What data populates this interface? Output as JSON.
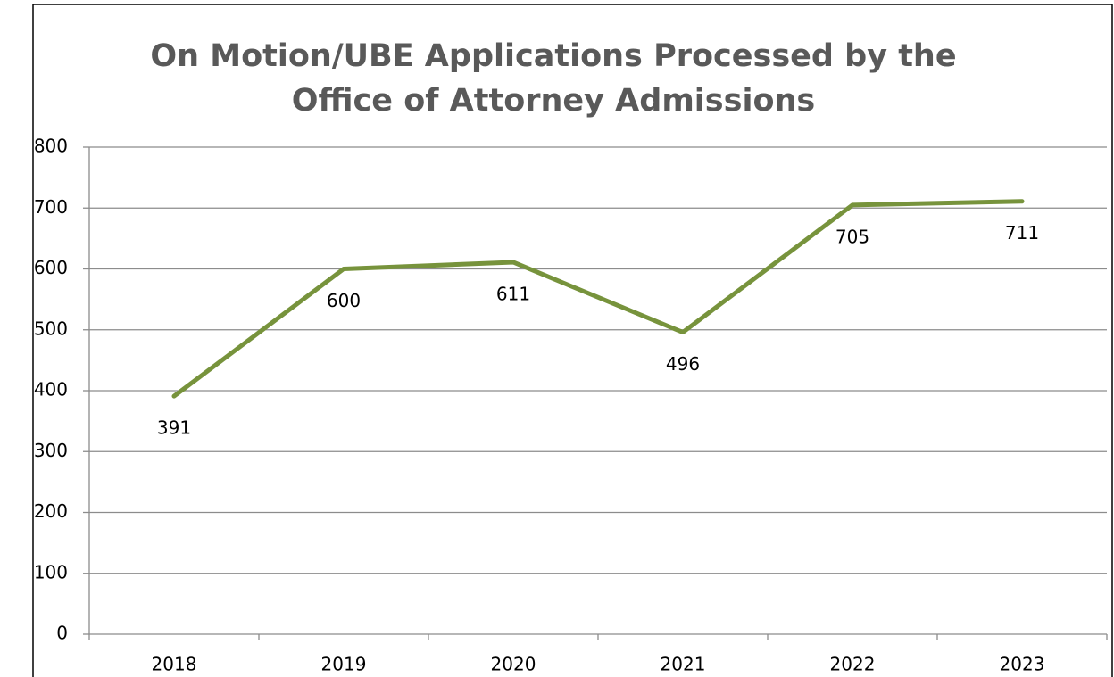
{
  "chart_data": {
    "type": "line",
    "title": "On Motion/UBE Applications Processed by the Office of Attorney Admissions",
    "categories": [
      "2018",
      "2019",
      "2020",
      "2021",
      "2022",
      "2023"
    ],
    "values": [
      391,
      600,
      611,
      496,
      705,
      711
    ],
    "color": "#77933c",
    "ylim": [
      0,
      800
    ],
    "yticks": [
      0,
      100,
      200,
      300,
      400,
      500,
      600,
      700,
      800
    ],
    "grid": true
  }
}
